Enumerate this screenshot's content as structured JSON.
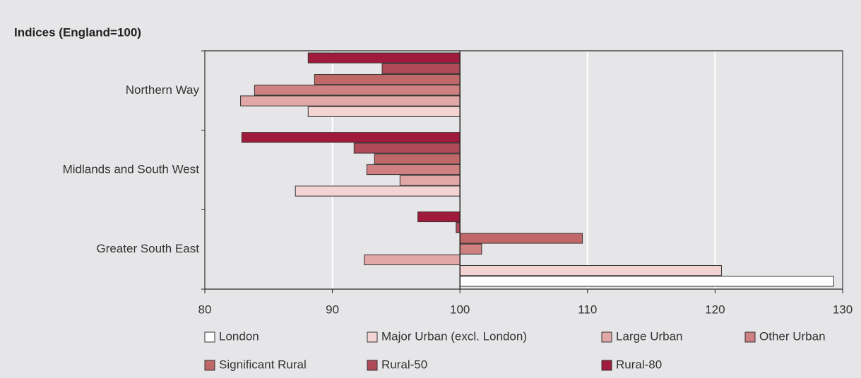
{
  "chart_data": {
    "type": "hbar",
    "title": "Indices (England=100)",
    "categories": [
      "Northern Way",
      "Midlands and South West",
      "Greater South East"
    ],
    "base": 100,
    "xlim": [
      80,
      130
    ],
    "xticks": [
      80,
      90,
      100,
      110,
      120,
      130
    ],
    "grid": true,
    "series": [
      {
        "name": "London",
        "color": "#ffffff",
        "values": [
          null,
          null,
          129.3
        ]
      },
      {
        "name": "Major Urban (excl. London)",
        "color": "#f4d3d3",
        "values": [
          88.1,
          87.1,
          120.5
        ]
      },
      {
        "name": "Large Urban",
        "color": "#e2a7a7",
        "values": [
          82.8,
          95.3,
          92.5
        ]
      },
      {
        "name": "Other Urban",
        "color": "#cf8080",
        "values": [
          83.9,
          92.7,
          101.7
        ]
      },
      {
        "name": "Significant Rural",
        "color": "#c06868",
        "values": [
          88.6,
          93.3,
          109.6
        ]
      },
      {
        "name": "Rural-50",
        "color": "#b04a58",
        "values": [
          93.9,
          91.7,
          99.7
        ]
      },
      {
        "name": "Rural-80",
        "color": "#a01a3c",
        "values": [
          88.1,
          82.9,
          96.7
        ]
      }
    ]
  }
}
